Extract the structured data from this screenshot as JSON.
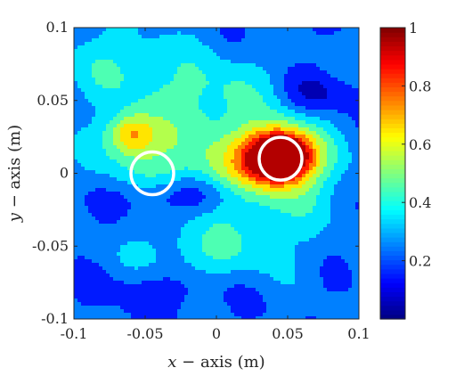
{
  "chart_data": {
    "type": "heatmap",
    "title": "",
    "xlabel_var": "x",
    "xlabel_rest": " − axis (m)",
    "ylabel_var": "y",
    "ylabel_rest": " − axis (m)",
    "xlim": [
      -0.1,
      0.1
    ],
    "ylim": [
      -0.1,
      0.1
    ],
    "xticks": [
      -0.1,
      -0.05,
      0,
      0.05,
      0.1
    ],
    "yticks": [
      -0.1,
      -0.05,
      0,
      0.05,
      0.1
    ],
    "xtick_labels": [
      "-0.1",
      "-0.05",
      "0",
      "0.05",
      "0.1"
    ],
    "ytick_labels": [
      "-0.1",
      "-0.05",
      "0",
      "0.05",
      "0.1"
    ],
    "colorbar": {
      "colormap": "jet",
      "range": [
        0,
        1
      ],
      "ticks": [
        0.2,
        0.4,
        0.6,
        0.8,
        1
      ],
      "tick_labels": [
        "0.2",
        "0.4",
        "0.6",
        "0.8",
        "1"
      ]
    },
    "contour_levels": 10,
    "field_peaks": [
      {
        "x": 0.045,
        "y": 0.012,
        "value": 1.0,
        "sx": 0.016,
        "sy": 0.012
      },
      {
        "x": 0.03,
        "y": 0.0,
        "value": 0.35,
        "sx": 0.035,
        "sy": 0.025
      },
      {
        "x": -0.06,
        "y": 0.027,
        "value": 0.38,
        "sx": 0.012,
        "sy": 0.01
      },
      {
        "x": -0.045,
        "y": 0.01,
        "value": 0.2,
        "sx": 0.03,
        "sy": 0.02
      },
      {
        "x": -0.005,
        "y": 0.055,
        "value": 0.18,
        "sx": 0.035,
        "sy": 0.02
      },
      {
        "x": -0.07,
        "y": 0.075,
        "value": 0.15,
        "sx": 0.03,
        "sy": 0.02
      },
      {
        "x": -0.005,
        "y": -0.055,
        "value": 0.15,
        "sx": 0.04,
        "sy": 0.015
      },
      {
        "x": 0.07,
        "y": 0.055,
        "value": -0.15,
        "sx": 0.02,
        "sy": 0.01
      },
      {
        "x": -0.02,
        "y": -0.015,
        "value": -0.2,
        "sx": 0.035,
        "sy": 0.01
      },
      {
        "x": -0.04,
        "y": -0.08,
        "value": -0.1,
        "sx": 0.03,
        "sy": 0.01
      }
    ],
    "field_baseline": 0.22,
    "markers": [
      {
        "type": "circle",
        "cx": -0.045,
        "cy": 0.0,
        "r": 0.015,
        "color": "#ffffff"
      },
      {
        "type": "circle",
        "cx": 0.045,
        "cy": 0.01,
        "r": 0.015,
        "color": "#ffffff"
      }
    ]
  }
}
